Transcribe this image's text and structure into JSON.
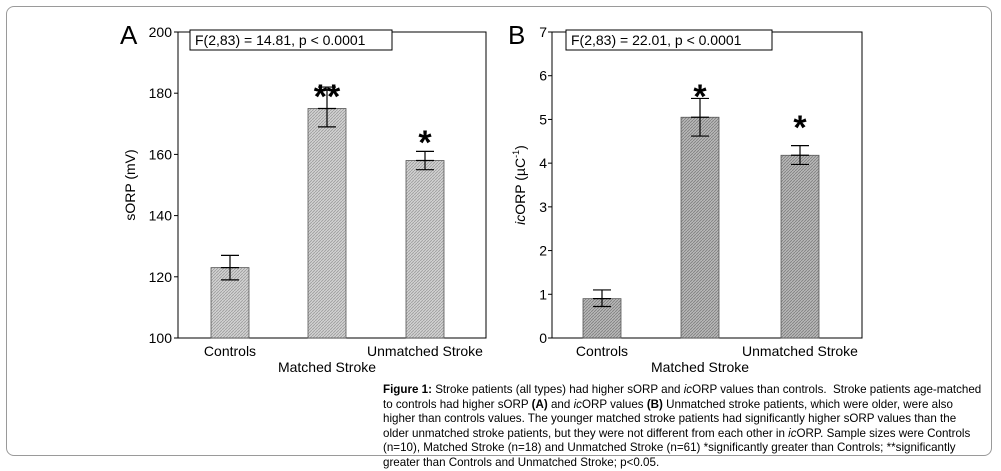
{
  "chart_data": [
    {
      "type": "bar",
      "panel_label": "A",
      "categories": [
        "Controls",
        "Matched Stroke",
        "Unmatched Stroke"
      ],
      "values": [
        123,
        175,
        158
      ],
      "error_low": [
        119,
        169,
        155
      ],
      "error_high": [
        127,
        182,
        161
      ],
      "significance": [
        "",
        "**",
        "*"
      ],
      "stat_text": "F(2,83) = 14.81, p < 0.0001",
      "ylabel": "sORP (mV)",
      "xlabel": "",
      "ylim": [
        100,
        200
      ],
      "yticks": [
        "100",
        "120",
        "140",
        "160",
        "180",
        "200"
      ],
      "ytick_values": [
        100,
        120,
        140,
        160,
        180,
        200
      ],
      "bar_color": "#c4c4c4",
      "grid": false
    },
    {
      "type": "bar",
      "panel_label": "B",
      "categories": [
        "Controls",
        "Matched Stroke",
        "Unmatched Stroke"
      ],
      "values": [
        0.9,
        5.05,
        4.18
      ],
      "error_low": [
        0.72,
        4.62,
        3.97
      ],
      "error_high": [
        1.1,
        5.48,
        4.4
      ],
      "significance": [
        "",
        "*",
        "*"
      ],
      "stat_text": "F(2,83) = 22.01, p < 0.0001",
      "ylabel_italic": "ic",
      "ylabel_rest": "ORP (µC",
      "ylabel_sup": "-1",
      "ylabel_close": ")",
      "xlabel": "",
      "ylim": [
        0,
        7
      ],
      "yticks": [
        "0",
        "1",
        "2",
        "3",
        "4",
        "5",
        "6",
        "7"
      ],
      "ytick_values": [
        0,
        1,
        2,
        3,
        4,
        5,
        6,
        7
      ],
      "bar_color": "#aaaaaa",
      "grid": false
    }
  ],
  "caption": {
    "t1": "Figure 1:",
    "t2": " Stroke patients (all types) had higher sORP and ",
    "t3": "ic",
    "t4": "ORP values than controls.  Stroke patients age-matched to controls had higher sORP ",
    "t5": "(A)",
    "t6": " and ",
    "t7": "ic",
    "t8": "ORP values ",
    "t9": "(B)",
    "t10": " Unmatched stroke patients, which were older, were also higher than controls values. The younger matched stroke patients had significantly higher sORP values than the older unmatched stroke patients, but they were not different from each other in ",
    "t11": "ic",
    "t12": "ORP. Sample sizes were Controls (n=10), Matched Stroke (n=18) and Unmatched Stroke (n=61) *significantly greater than Controls; **significantly greater than Controls and Unmatched Stroke; p<0.05."
  }
}
